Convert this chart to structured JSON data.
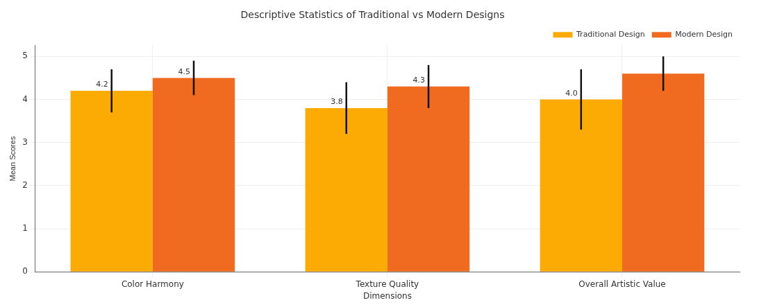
{
  "chart_data": {
    "type": "bar",
    "title": "Descriptive Statistics of Traditional vs Modern Designs",
    "xlabel": "Dimensions",
    "ylabel": "Mean Scores",
    "categories": [
      "Color Harmony",
      "Texture Quality",
      "Overall Artistic Value"
    ],
    "series": [
      {
        "name": "Traditional Design",
        "color": "#fbab03",
        "values": [
          4.2,
          3.8,
          4.0
        ],
        "errors": [
          0.5,
          0.6,
          0.7
        ],
        "value_labels": [
          "4.2",
          "3.8",
          "4.0"
        ]
      },
      {
        "name": "Modern Design",
        "color": "#f06a20",
        "values": [
          4.5,
          4.3,
          4.6
        ],
        "errors": [
          0.4,
          0.5,
          0.4
        ],
        "value_labels": [
          "4.5",
          "4.3",
          null
        ]
      }
    ],
    "ylim": [
      0,
      5.25
    ],
    "yticks": [
      0,
      1,
      2,
      3,
      4,
      5
    ],
    "grid": true,
    "legend": "top right"
  }
}
